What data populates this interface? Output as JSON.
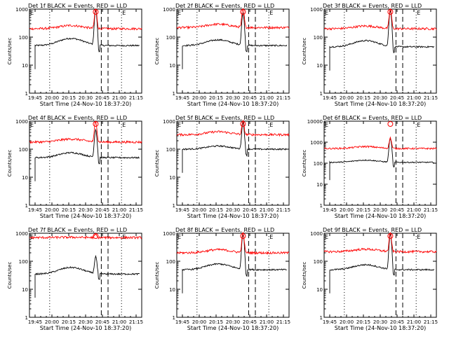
{
  "colors": {
    "events": "#000000",
    "lld": "#ff0000",
    "axis": "#000000",
    "marker": "#000000"
  },
  "shared": {
    "xlabel": "Start Time (24-Nov-10 18:37:20)",
    "ylabel": "Counts/sec",
    "x_tick_labels": [
      "19:45",
      "20:00",
      "20:15",
      "20:30",
      "20:45",
      "21:00",
      "21:15"
    ],
    "x_tick_values_min": [
      68,
      83,
      98,
      113,
      128,
      143,
      158
    ],
    "x_range_min": [
      63,
      163
    ],
    "dotted_lines_min": [
      81,
      145
    ],
    "dashed_lines_min": [
      127,
      133
    ],
    "corner_marks": [
      "E",
      "E"
    ],
    "yscale": "log"
  },
  "chart_data": [
    {
      "type": "line",
      "title": "Det 1f BLACK = Events, RED = LLD",
      "ylim": [
        1,
        1000
      ],
      "y_tick_labels": [
        "1",
        "10",
        "100",
        "1000"
      ],
      "series": [
        {
          "name": "Events",
          "color": "#000000",
          "base": 50,
          "trend": 90,
          "peak": 900,
          "start": 68
        },
        {
          "name": "LLD",
          "color": "#ff0000",
          "base": 200,
          "trend": 260,
          "peak": 1000,
          "start": 63
        }
      ]
    },
    {
      "type": "line",
      "title": "Det 2f BLACK = Events, RED = LLD",
      "ylim": [
        1,
        1000
      ],
      "y_tick_labels": [
        "1",
        "10",
        "100",
        "1000"
      ],
      "series": [
        {
          "name": "Events",
          "color": "#000000",
          "base": 50,
          "trend": 80,
          "peak": 700,
          "start": 68
        },
        {
          "name": "LLD",
          "color": "#ff0000",
          "base": 220,
          "trend": 290,
          "peak": 1000,
          "start": 63
        }
      ]
    },
    {
      "type": "line",
      "title": "Det 3f BLACK = Events, RED = LLD",
      "ylim": [
        1,
        1000
      ],
      "y_tick_labels": [
        "1",
        "10",
        "100",
        "1000"
      ],
      "series": [
        {
          "name": "Events",
          "color": "#000000",
          "base": 45,
          "trend": 75,
          "peak": 900,
          "start": 68
        },
        {
          "name": "LLD",
          "color": "#ff0000",
          "base": 200,
          "trend": 250,
          "peak": 1000,
          "start": 63
        }
      ]
    },
    {
      "type": "line",
      "title": "Det 4f BLACK = Events, RED = LLD",
      "ylim": [
        1,
        1000
      ],
      "y_tick_labels": [
        "1",
        "10",
        "100",
        "1000"
      ],
      "series": [
        {
          "name": "Events",
          "color": "#000000",
          "base": 50,
          "trend": 75,
          "peak": 500,
          "start": 68
        },
        {
          "name": "LLD",
          "color": "#ff0000",
          "base": 180,
          "trend": 230,
          "peak": 1000,
          "start": 63
        }
      ]
    },
    {
      "type": "line",
      "title": "Det 5f BLACK = Events, RED = LLD",
      "ylim": [
        1,
        1000
      ],
      "y_tick_labels": [
        "1",
        "10",
        "100",
        "1000"
      ],
      "series": [
        {
          "name": "Events",
          "color": "#000000",
          "base": 100,
          "trend": 130,
          "peak": 900,
          "start": 68
        },
        {
          "name": "LLD",
          "color": "#ff0000",
          "base": 330,
          "trend": 420,
          "peak": 1000,
          "start": 63
        }
      ]
    },
    {
      "type": "line",
      "title": "Det 6f BLACK = Events, RED = LLD",
      "ylim": [
        1,
        10000
      ],
      "y_tick_labels": [
        "1",
        "10",
        "100",
        "1000",
        "10000"
      ],
      "series": [
        {
          "name": "Events",
          "color": "#000000",
          "base": 110,
          "trend": 140,
          "peak": 1500,
          "start": 68
        },
        {
          "name": "LLD",
          "color": "#ff0000",
          "base": 500,
          "trend": 620,
          "peak": 1600,
          "start": 63
        }
      ]
    },
    {
      "type": "line",
      "title": "Det 7f BLACK = Events, RED = LLD",
      "ylim": [
        1,
        1000
      ],
      "y_tick_labels": [
        "1",
        "10",
        "100",
        "1000"
      ],
      "series": [
        {
          "name": "Events",
          "color": "#000000",
          "base": 35,
          "trend": 60,
          "peak": 150,
          "start": 68
        },
        {
          "name": "LLD",
          "color": "#ff0000",
          "base": 700,
          "trend": 720,
          "peak": 900,
          "start": 63
        }
      ]
    },
    {
      "type": "line",
      "title": "Det 8f BLACK = Events, RED = LLD",
      "ylim": [
        1,
        1000
      ],
      "y_tick_labels": [
        "1",
        "10",
        "100",
        "1000"
      ],
      "series": [
        {
          "name": "Events",
          "color": "#000000",
          "base": 50,
          "trend": 80,
          "peak": 900,
          "start": 68
        },
        {
          "name": "LLD",
          "color": "#ff0000",
          "base": 200,
          "trend": 260,
          "peak": 1000,
          "start": 63
        }
      ]
    },
    {
      "type": "line",
      "title": "Det 9f BLACK = Events, RED = LLD",
      "ylim": [
        1,
        1000
      ],
      "y_tick_labels": [
        "1",
        "10",
        "100",
        "1000"
      ],
      "series": [
        {
          "name": "Events",
          "color": "#000000",
          "base": 50,
          "trend": 75,
          "peak": 900,
          "start": 68
        },
        {
          "name": "LLD",
          "color": "#ff0000",
          "base": 220,
          "trend": 270,
          "peak": 1000,
          "start": 63
        }
      ]
    }
  ]
}
